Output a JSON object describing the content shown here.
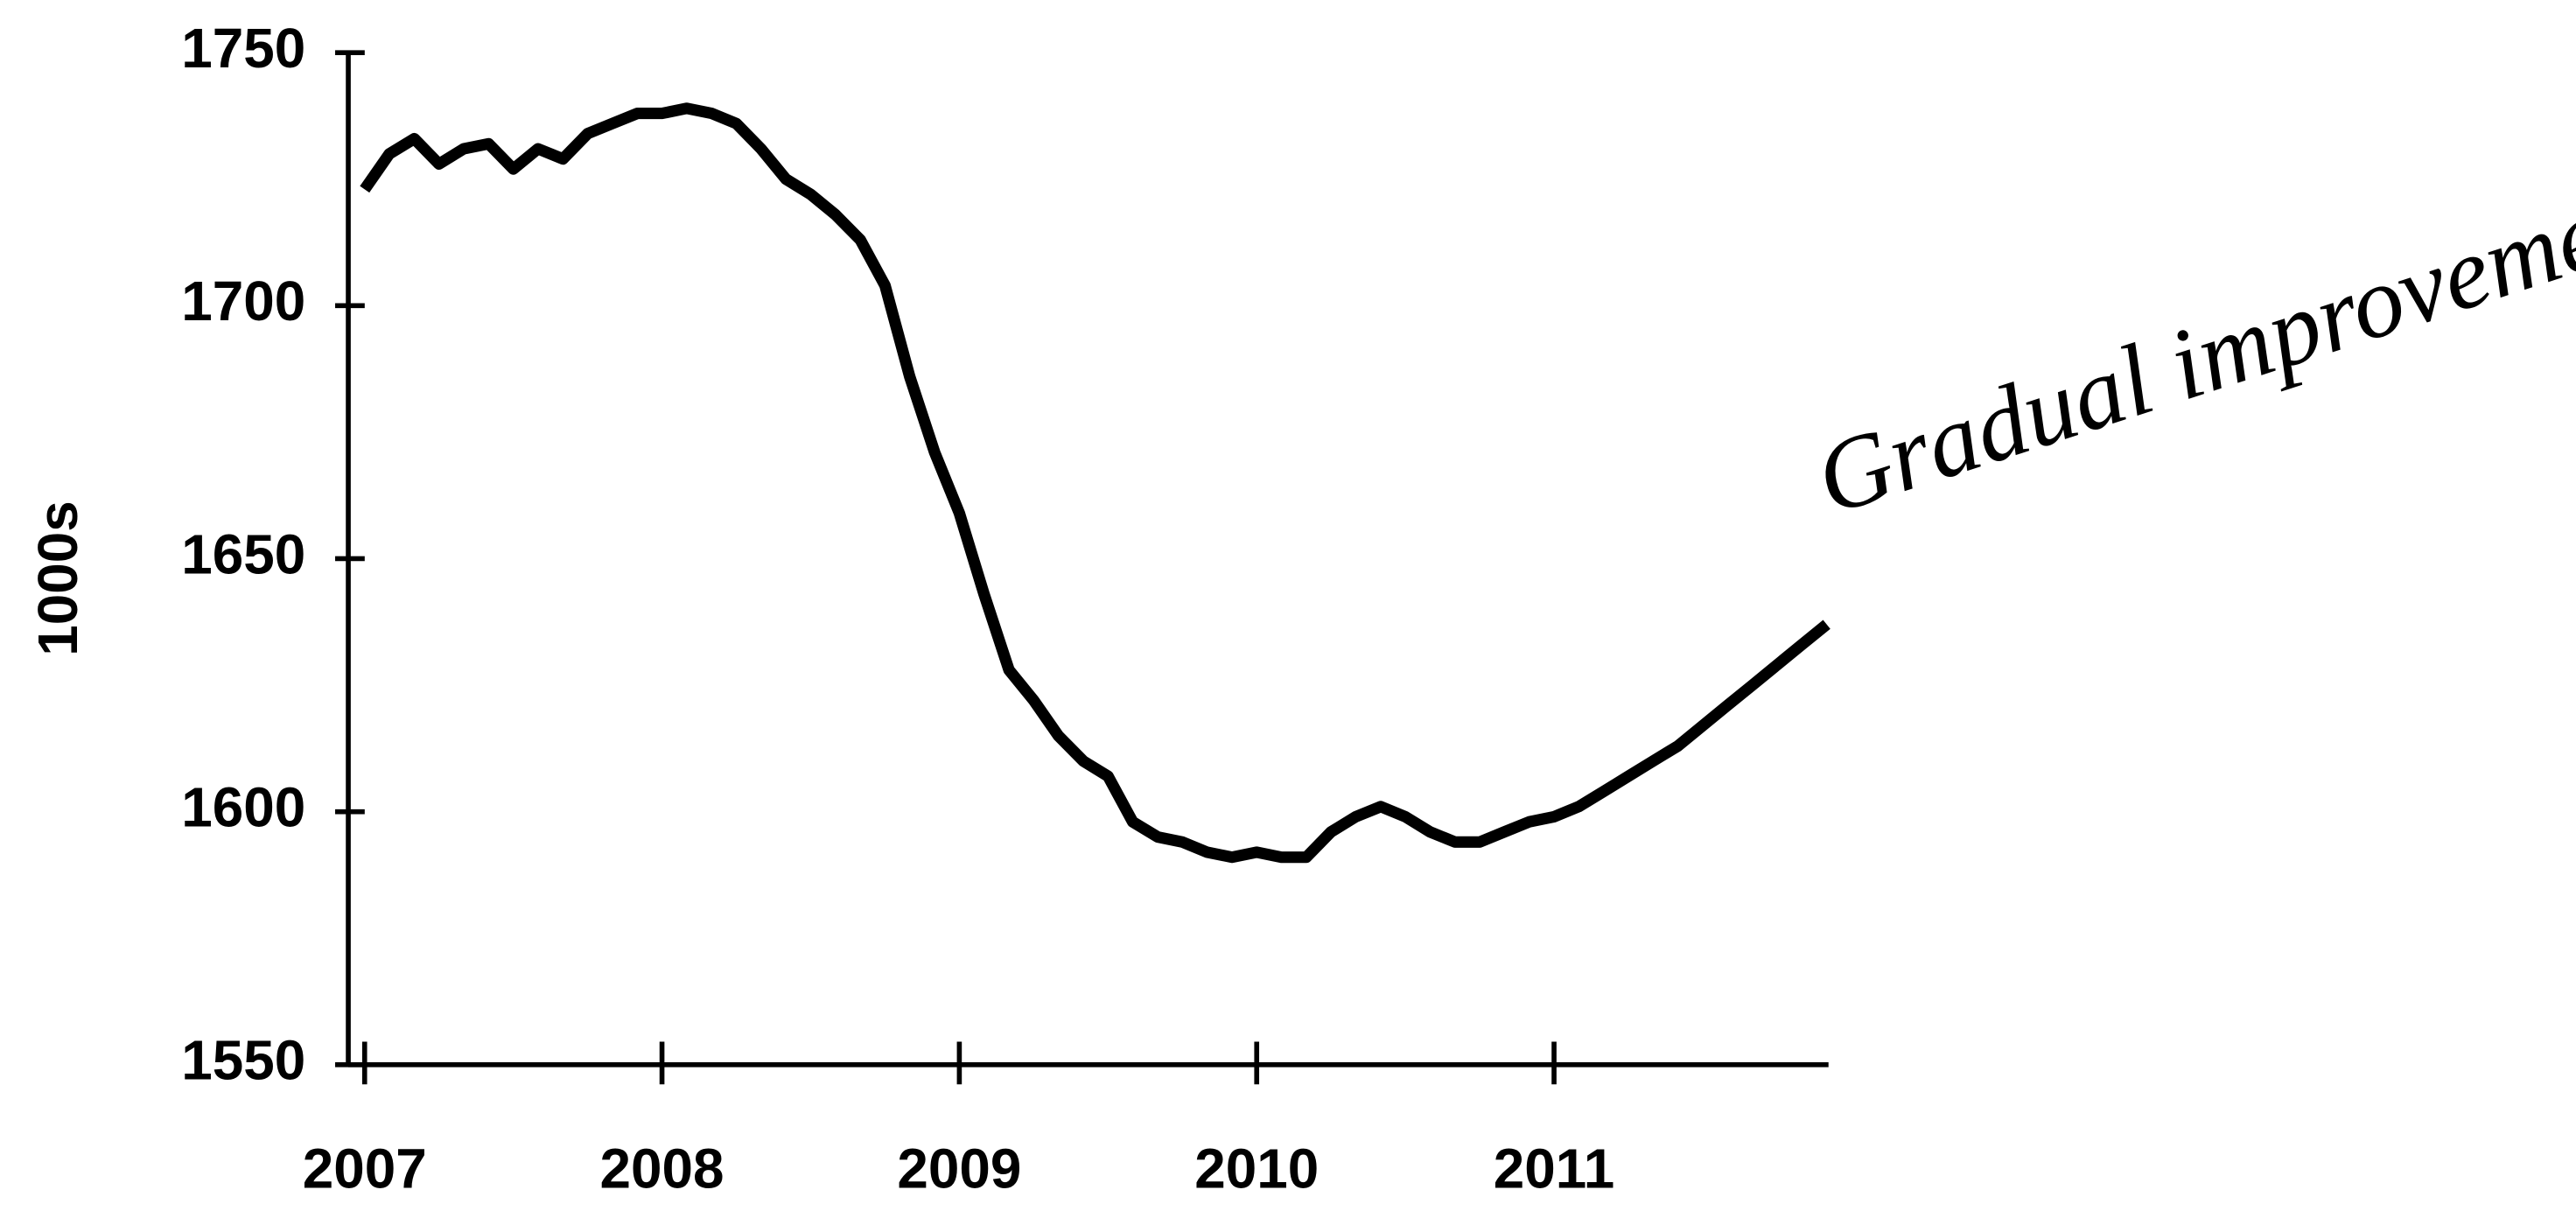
{
  "chart_data": {
    "type": "line",
    "ylabel": "1000s",
    "annotation": "Gradual improvement.",
    "x": [
      2007,
      2007.083,
      2007.167,
      2007.25,
      2007.333,
      2007.417,
      2007.5,
      2007.583,
      2007.667,
      2007.75,
      2007.833,
      2007.917,
      2008,
      2008.083,
      2008.167,
      2008.25,
      2008.333,
      2008.417,
      2008.5,
      2008.583,
      2008.667,
      2008.75,
      2008.833,
      2008.917,
      2009,
      2009.083,
      2009.167,
      2009.25,
      2009.333,
      2009.417,
      2009.5,
      2009.583,
      2009.667,
      2009.75,
      2009.833,
      2009.917,
      2010,
      2010.083,
      2010.167,
      2010.25,
      2010.333,
      2010.417,
      2010.5,
      2010.583,
      2010.667,
      2010.75,
      2010.833,
      2010.917,
      2011,
      2011.083,
      2011.167,
      2011.25,
      2011.333,
      2011.417,
      2011.5,
      2011.583,
      2011.667,
      2011.75,
      2011.833,
      2011.917
    ],
    "series": [
      {
        "color": "#000000",
        "values": [
          1723,
          1730,
          1733,
          1728,
          1731,
          1732,
          1727,
          1731,
          1729,
          1734,
          1736,
          1738,
          1738,
          1739,
          1738,
          1736,
          1731,
          1725,
          1722,
          1718,
          1713,
          1704,
          1686,
          1671,
          1659,
          1643,
          1628,
          1622,
          1615,
          1610,
          1607,
          1598,
          1595,
          1594,
          1592,
          1591,
          1592,
          1591,
          1591,
          1596,
          1599,
          1601,
          1599,
          1596,
          1594,
          1594,
          1596,
          1598,
          1599,
          1601,
          1604,
          1607,
          1610,
          1613,
          1617,
          1621,
          1625,
          1629,
          1633,
          1637
        ]
      }
    ],
    "xlim": [
      2006.945,
      2011.923
    ],
    "ylim": [
      1550,
      1750
    ],
    "xticks": [
      2007,
      2008,
      2009,
      2010,
      2011
    ],
    "yticks": [
      1550,
      1600,
      1650,
      1700,
      1750
    ]
  }
}
